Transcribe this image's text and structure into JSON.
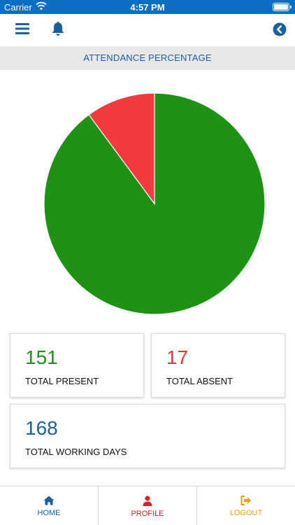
{
  "status": {
    "carrier": "Carrier",
    "time": "4:57 PM"
  },
  "header": {
    "title": "ATTENDANCE PERCENTAGE"
  },
  "chart_data": {
    "type": "pie",
    "values": [
      151,
      17
    ],
    "colors": [
      "#1e9214",
      "#f33a3c"
    ]
  },
  "stats": {
    "present": {
      "value": "151",
      "label": "TOTAL PRESENT",
      "color": "#1e9214"
    },
    "absent": {
      "value": "17",
      "label": "TOTAL ABSENT",
      "color": "#e3383a"
    },
    "working": {
      "value": "168",
      "label": "TOTAL WORKING DAYS",
      "color": "#1a5fa0"
    }
  },
  "tabs": [
    {
      "label": "HOME",
      "icon": "home-icon",
      "color": "#1a5fa0"
    },
    {
      "label": "PROFILE",
      "icon": "user-icon",
      "color": "#d3262a"
    },
    {
      "label": "LOGOUT",
      "icon": "logout-icon",
      "color": "#e8a21a"
    }
  ],
  "colors": {
    "accent": "#0a6fc2",
    "header_bg": "#e8e8e8"
  }
}
